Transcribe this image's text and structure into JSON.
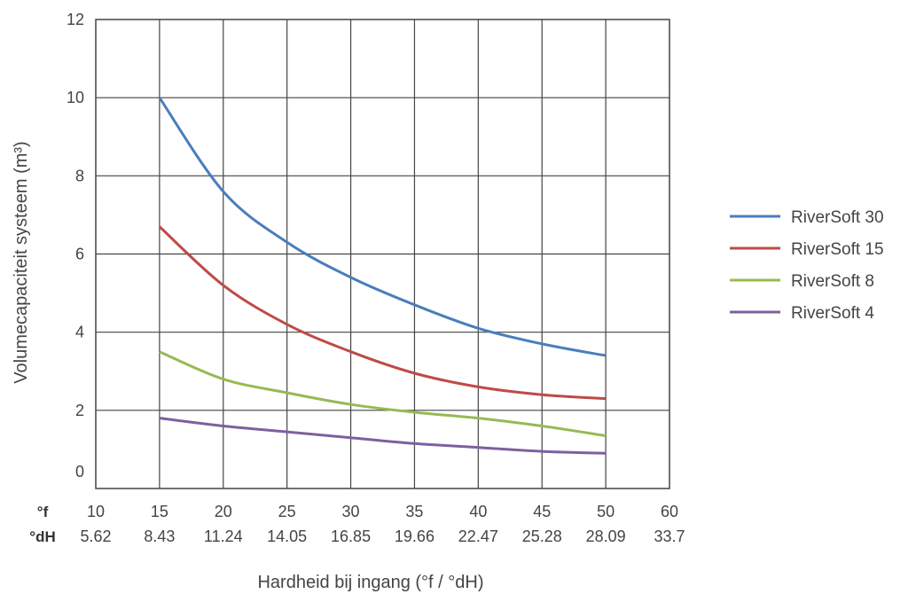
{
  "chart_data": {
    "type": "line",
    "title": "",
    "ylabel": "Volumecapaciteit systeem (m³)",
    "xlabel": "Hardheid bij ingang (°f / °dH)",
    "ylim": [
      0,
      12
    ],
    "yticks": [
      0,
      2,
      4,
      6,
      8,
      10,
      12
    ],
    "xlim": [
      10,
      60
    ],
    "x_row_labels": {
      "f": "°f",
      "dH": "°dH"
    },
    "x_ticks_f": [
      "10",
      "15",
      "20",
      "25",
      "30",
      "35",
      "40",
      "45",
      "50",
      "60"
    ],
    "x_ticks_dH": [
      "5.62",
      "8.43",
      "11.24",
      "14.05",
      "16.85",
      "19.66",
      "22.47",
      "25.28",
      "28.09",
      "33.7"
    ],
    "grid": true,
    "legend_position": "right",
    "x": [
      15,
      20,
      25,
      30,
      35,
      40,
      45,
      50
    ],
    "series": [
      {
        "name": "RiverSoft 30",
        "color": "#4a7ebb",
        "values": [
          10.0,
          7.6,
          6.3,
          5.4,
          4.7,
          4.1,
          3.7,
          3.4
        ]
      },
      {
        "name": "RiverSoft 15",
        "color": "#be4b48",
        "values": [
          6.7,
          5.2,
          4.2,
          3.5,
          2.95,
          2.6,
          2.4,
          2.3
        ]
      },
      {
        "name": "RiverSoft 8",
        "color": "#98b954",
        "values": [
          3.5,
          2.8,
          2.45,
          2.15,
          1.95,
          1.8,
          1.6,
          1.35
        ]
      },
      {
        "name": "RiverSoft 4",
        "color": "#7d60a0",
        "values": [
          1.8,
          1.6,
          1.45,
          1.3,
          1.15,
          1.05,
          0.95,
          0.9
        ]
      }
    ]
  }
}
